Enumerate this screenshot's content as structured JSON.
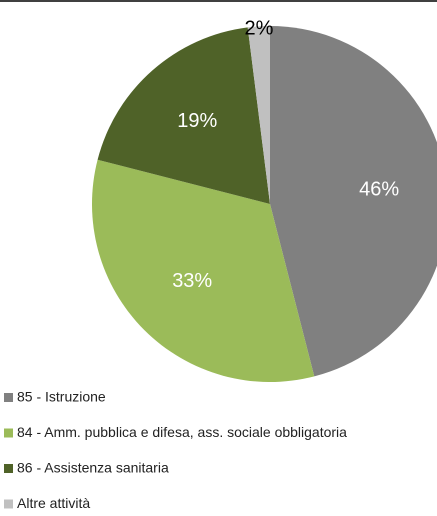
{
  "chart_data": {
    "type": "pie",
    "categories": [
      "85 - Istruzione",
      "84 - Amm. pubblica e difesa, ass. sociale obbligatoria",
      "86 - Assistenza sanitaria",
      "Altre attività"
    ],
    "values": [
      46,
      33,
      19,
      2
    ],
    "value_labels": [
      "46%",
      "33%",
      "19%",
      "2%"
    ],
    "colors": [
      "#808080",
      "#9bbb59",
      "#4f6228",
      "#c0c0c0"
    ],
    "legend": "bottom"
  }
}
